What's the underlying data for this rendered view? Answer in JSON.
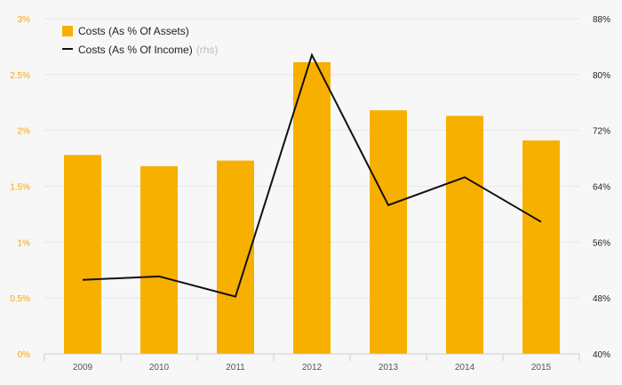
{
  "chart_data": {
    "type": "bar+line",
    "categories": [
      "2009",
      "2010",
      "2011",
      "2012",
      "2013",
      "2014",
      "2015"
    ],
    "series": [
      {
        "name": "Costs (As % Of Assets)",
        "type": "bar",
        "axis": "left",
        "values": [
          1.78,
          1.68,
          1.73,
          2.61,
          2.18,
          2.13,
          1.91
        ]
      },
      {
        "name": "Costs (As % Of Income)",
        "type": "line",
        "axis": "right",
        "values": [
          50.6,
          51.1,
          48.2,
          82.8,
          61.3,
          65.3,
          58.9
        ]
      }
    ],
    "left_axis": {
      "ylim": [
        0,
        3
      ],
      "ticks": [
        0,
        0.5,
        1,
        1.5,
        2,
        2.5,
        3
      ],
      "tick_labels": [
        "0%",
        "0.5%",
        "1%",
        "1.5%",
        "2%",
        "2.5%",
        "3%"
      ]
    },
    "right_axis": {
      "ylim": [
        40,
        88
      ],
      "ticks": [
        40,
        48,
        56,
        64,
        72,
        80,
        88
      ],
      "tick_labels": [
        "40%",
        "48%",
        "56%",
        "64%",
        "72%",
        "80%",
        "88%"
      ]
    },
    "legend": {
      "position": "top-left",
      "items": [
        {
          "label": "Costs (As % Of Assets)",
          "note": ""
        },
        {
          "label": "Costs (As % Of Income)",
          "note": "(rhs)"
        }
      ]
    },
    "colors": {
      "bar": "#f8b000",
      "line": "#111111",
      "left_tick": "#f5a800",
      "grid": "#e6e6e6"
    }
  }
}
